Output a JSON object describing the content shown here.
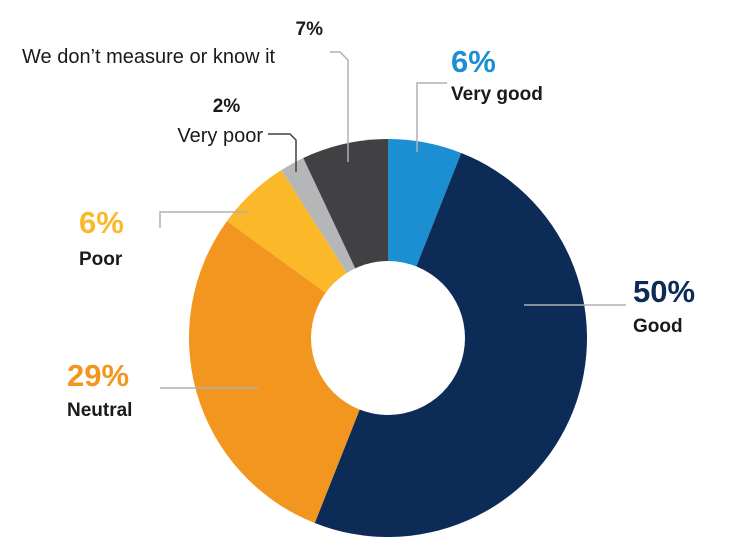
{
  "chart_data": {
    "type": "pie",
    "donut": true,
    "slices": [
      {
        "category": "Very good",
        "value": 6,
        "label": "6%",
        "color": "#1b8fd1"
      },
      {
        "category": "Good",
        "value": 50,
        "label": "50%",
        "color": "#0d2b57"
      },
      {
        "category": "Neutral",
        "value": 29,
        "label": "29%",
        "color": "#f39620"
      },
      {
        "category": "Poor",
        "value": 6,
        "label": "6%",
        "color": "#fbb829"
      },
      {
        "category": "Very poor",
        "value": 2,
        "label": "2%",
        "color": "#b5b6b8"
      },
      {
        "category": "We don’t measure or know it",
        "value": 7,
        "label": "7%",
        "color": "#414042"
      }
    ],
    "label_colors": {
      "Very good": "#1b8fd1",
      "Good": "#0d2b57",
      "Neutral": "#f39620",
      "Poor": "#fbb829",
      "Very poor": "#1a1a1a",
      "We don’t measure or know it": "#1a1a1a"
    }
  }
}
